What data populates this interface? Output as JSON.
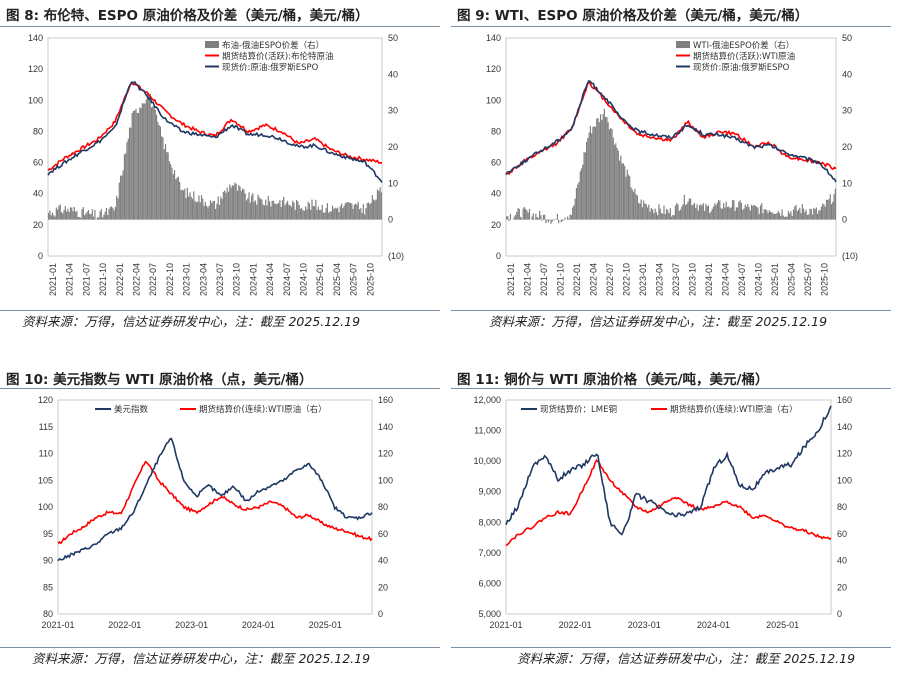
{
  "panels": [
    {
      "title": "图 8: 布伦特、ESPO 原油价格及价差（美元/桶，美元/桶）",
      "source": "资料来源：万得，信达证券研发中心，注：截至 2025.12.19"
    },
    {
      "title": "图 9: WTI、ESPO 原油价格及价差（美元/桶，美元/桶）",
      "source": "资料来源：万得，信达证券研发中心，注：截至 2025.12.19"
    },
    {
      "title": "图 10: 美元指数与 WTI 原油价格（点，美元/桶）",
      "source": "资料来源：万得，信达证券研发中心，注：截至 2025.12.19"
    },
    {
      "title": "图 11: 铜价与 WTI 原油价格（美元/吨，美元/桶）",
      "source": "资料来源：万得，信达证券研发中心，注：截至 2025.12.19"
    }
  ],
  "colors": {
    "red": "#ff0000",
    "navy": "#1f3864",
    "gray": "#7f7f7f",
    "frame": "#7a8ea6"
  },
  "chart_data": [
    {
      "id": "fig8",
      "type": "line",
      "ylim": [
        0,
        140
      ],
      "yticks": [
        "0",
        "20",
        "40",
        "60",
        "80",
        "100",
        "120",
        "140"
      ],
      "y2lim": [
        -10,
        50
      ],
      "y2ticks": [
        "(10)",
        "0",
        "10",
        "20",
        "30",
        "40",
        "50"
      ],
      "xticks": [
        "2021-01",
        "2021-04",
        "2021-07",
        "2021-10",
        "2022-01",
        "2022-04",
        "2022-07",
        "2022-10",
        "2023-01",
        "2023-04",
        "2023-07",
        "2023-10",
        "2024-01",
        "2024-04",
        "2024-07",
        "2024-10",
        "2025-01",
        "2025-04",
        "2025-07",
        "2025-10"
      ],
      "legend": [
        "布油-俄油ESPO价差（右）",
        "期货结算价(活跃):布伦特原油",
        "现货价:原油:俄罗斯ESPO"
      ],
      "series": [
        {
          "name": "期货结算价(活跃):布伦特原油",
          "axis": "left",
          "values": [
            55,
            63,
            69,
            75,
            86,
            112,
            104,
            93,
            85,
            80,
            77,
            88,
            80,
            84,
            80,
            72,
            75,
            68,
            64,
            62,
            60
          ]
        },
        {
          "name": "现货价:原油:俄罗斯ESPO",
          "axis": "left",
          "values": [
            53,
            60,
            67,
            73,
            82,
            113,
            102,
            88,
            80,
            78,
            76,
            84,
            78,
            78,
            75,
            70,
            71,
            66,
            63,
            60,
            48
          ]
        },
        {
          "name": "布油-俄油ESPO价差（右）",
          "axis": "right",
          "values": [
            2,
            3,
            2,
            1,
            3,
            28,
            35,
            20,
            8,
            6,
            4,
            10,
            6,
            5,
            5,
            4,
            4,
            3,
            4,
            3,
            8
          ]
        }
      ]
    },
    {
      "id": "fig9",
      "type": "line",
      "ylim": [
        0,
        140
      ],
      "yticks": [
        "0",
        "20",
        "40",
        "60",
        "80",
        "100",
        "120",
        "140"
      ],
      "y2lim": [
        -10,
        50
      ],
      "y2ticks": [
        "(10)",
        "0",
        "10",
        "20",
        "30",
        "40",
        "50"
      ],
      "xticks": [
        "2021-01",
        "2021-04",
        "2021-07",
        "2021-10",
        "2022-01",
        "2022-04",
        "2022-07",
        "2022-10",
        "2023-01",
        "2023-04",
        "2023-07",
        "2023-10",
        "2024-01",
        "2024-04",
        "2024-07",
        "2024-10",
        "2025-01",
        "2025-04",
        "2025-07",
        "2025-10"
      ],
      "legend": [
        "WTI-俄油ESPO价差（右）",
        "期货结算价(活跃):WTI原油",
        "现货价:原油:俄罗斯ESPO"
      ],
      "series": [
        {
          "name": "期货结算价(活跃):WTI原油",
          "axis": "left",
          "values": [
            52,
            60,
            66,
            72,
            82,
            112,
            100,
            88,
            78,
            76,
            74,
            86,
            76,
            80,
            78,
            70,
            73,
            64,
            62,
            60,
            56
          ]
        },
        {
          "name": "现货价:原油:俄罗斯ESPO",
          "axis": "left",
          "values": [
            53,
            60,
            67,
            73,
            82,
            113,
            102,
            88,
            80,
            78,
            76,
            84,
            78,
            78,
            75,
            70,
            71,
            66,
            63,
            60,
            48
          ]
        },
        {
          "name": "WTI-俄油ESPO价差（右）",
          "axis": "right",
          "values": [
            1,
            2,
            1,
            0,
            2,
            24,
            30,
            16,
            5,
            3,
            2,
            6,
            3,
            4,
            4,
            3,
            3,
            2,
            3,
            2,
            7
          ]
        }
      ]
    },
    {
      "id": "fig10",
      "type": "line",
      "ylim": [
        80,
        120
      ],
      "yticks": [
        "80",
        "85",
        "90",
        "95",
        "100",
        "105",
        "110",
        "115",
        "120"
      ],
      "y2lim": [
        0,
        160
      ],
      "y2ticks": [
        "0",
        "20",
        "40",
        "60",
        "80",
        "100",
        "120",
        "140",
        "160"
      ],
      "xticks": [
        "2021-01",
        "2022-01",
        "2023-01",
        "2024-01",
        "2025-01"
      ],
      "legend": [
        "美元指数",
        "期货结算价(连续):WTI原油（右）"
      ],
      "series": [
        {
          "name": "美元指数",
          "axis": "left",
          "values": [
            90,
            91,
            92,
            93,
            95,
            96,
            99,
            104,
            109,
            113,
            105,
            102,
            104,
            102,
            104,
            101,
            103,
            104,
            105,
            107,
            108,
            105,
            100,
            98,
            98,
            99
          ]
        },
        {
          "name": "期货结算价(连续):WTI原油（右）",
          "axis": "right",
          "values": [
            52,
            60,
            65,
            72,
            76,
            75,
            95,
            115,
            100,
            90,
            80,
            76,
            82,
            88,
            82,
            78,
            80,
            84,
            80,
            72,
            74,
            68,
            64,
            62,
            58,
            56
          ]
        }
      ]
    },
    {
      "id": "fig11",
      "type": "line",
      "ylim": [
        5000,
        12000
      ],
      "yticks": [
        "5,000",
        "6,000",
        "7,000",
        "8,000",
        "9,000",
        "10,000",
        "11,000",
        "12,000"
      ],
      "y2lim": [
        0,
        160
      ],
      "y2ticks": [
        "0",
        "20",
        "40",
        "60",
        "80",
        "100",
        "120",
        "140",
        "160"
      ],
      "xticks": [
        "2021-01",
        "2022-01",
        "2023-01",
        "2024-01",
        "2025-01"
      ],
      "legend": [
        "现货结算价：LME铜",
        "期货结算价(连续):WTI原油（右）"
      ],
      "series": [
        {
          "name": "现货结算价：LME铜",
          "axis": "left",
          "values": [
            7900,
            8600,
            9800,
            10200,
            9400,
            9700,
            9900,
            10300,
            8000,
            7600,
            8900,
            8700,
            8400,
            8200,
            8300,
            8500,
            9800,
            10200,
            9200,
            9100,
            9600,
            9800,
            9900,
            10500,
            11000,
            11800
          ]
        },
        {
          "name": "期货结算价(连续):WTI原油（右）",
          "axis": "right",
          "values": [
            52,
            60,
            65,
            72,
            76,
            75,
            95,
            115,
            100,
            90,
            80,
            76,
            82,
            88,
            82,
            78,
            80,
            84,
            80,
            72,
            74,
            68,
            64,
            62,
            58,
            56
          ]
        }
      ]
    }
  ]
}
